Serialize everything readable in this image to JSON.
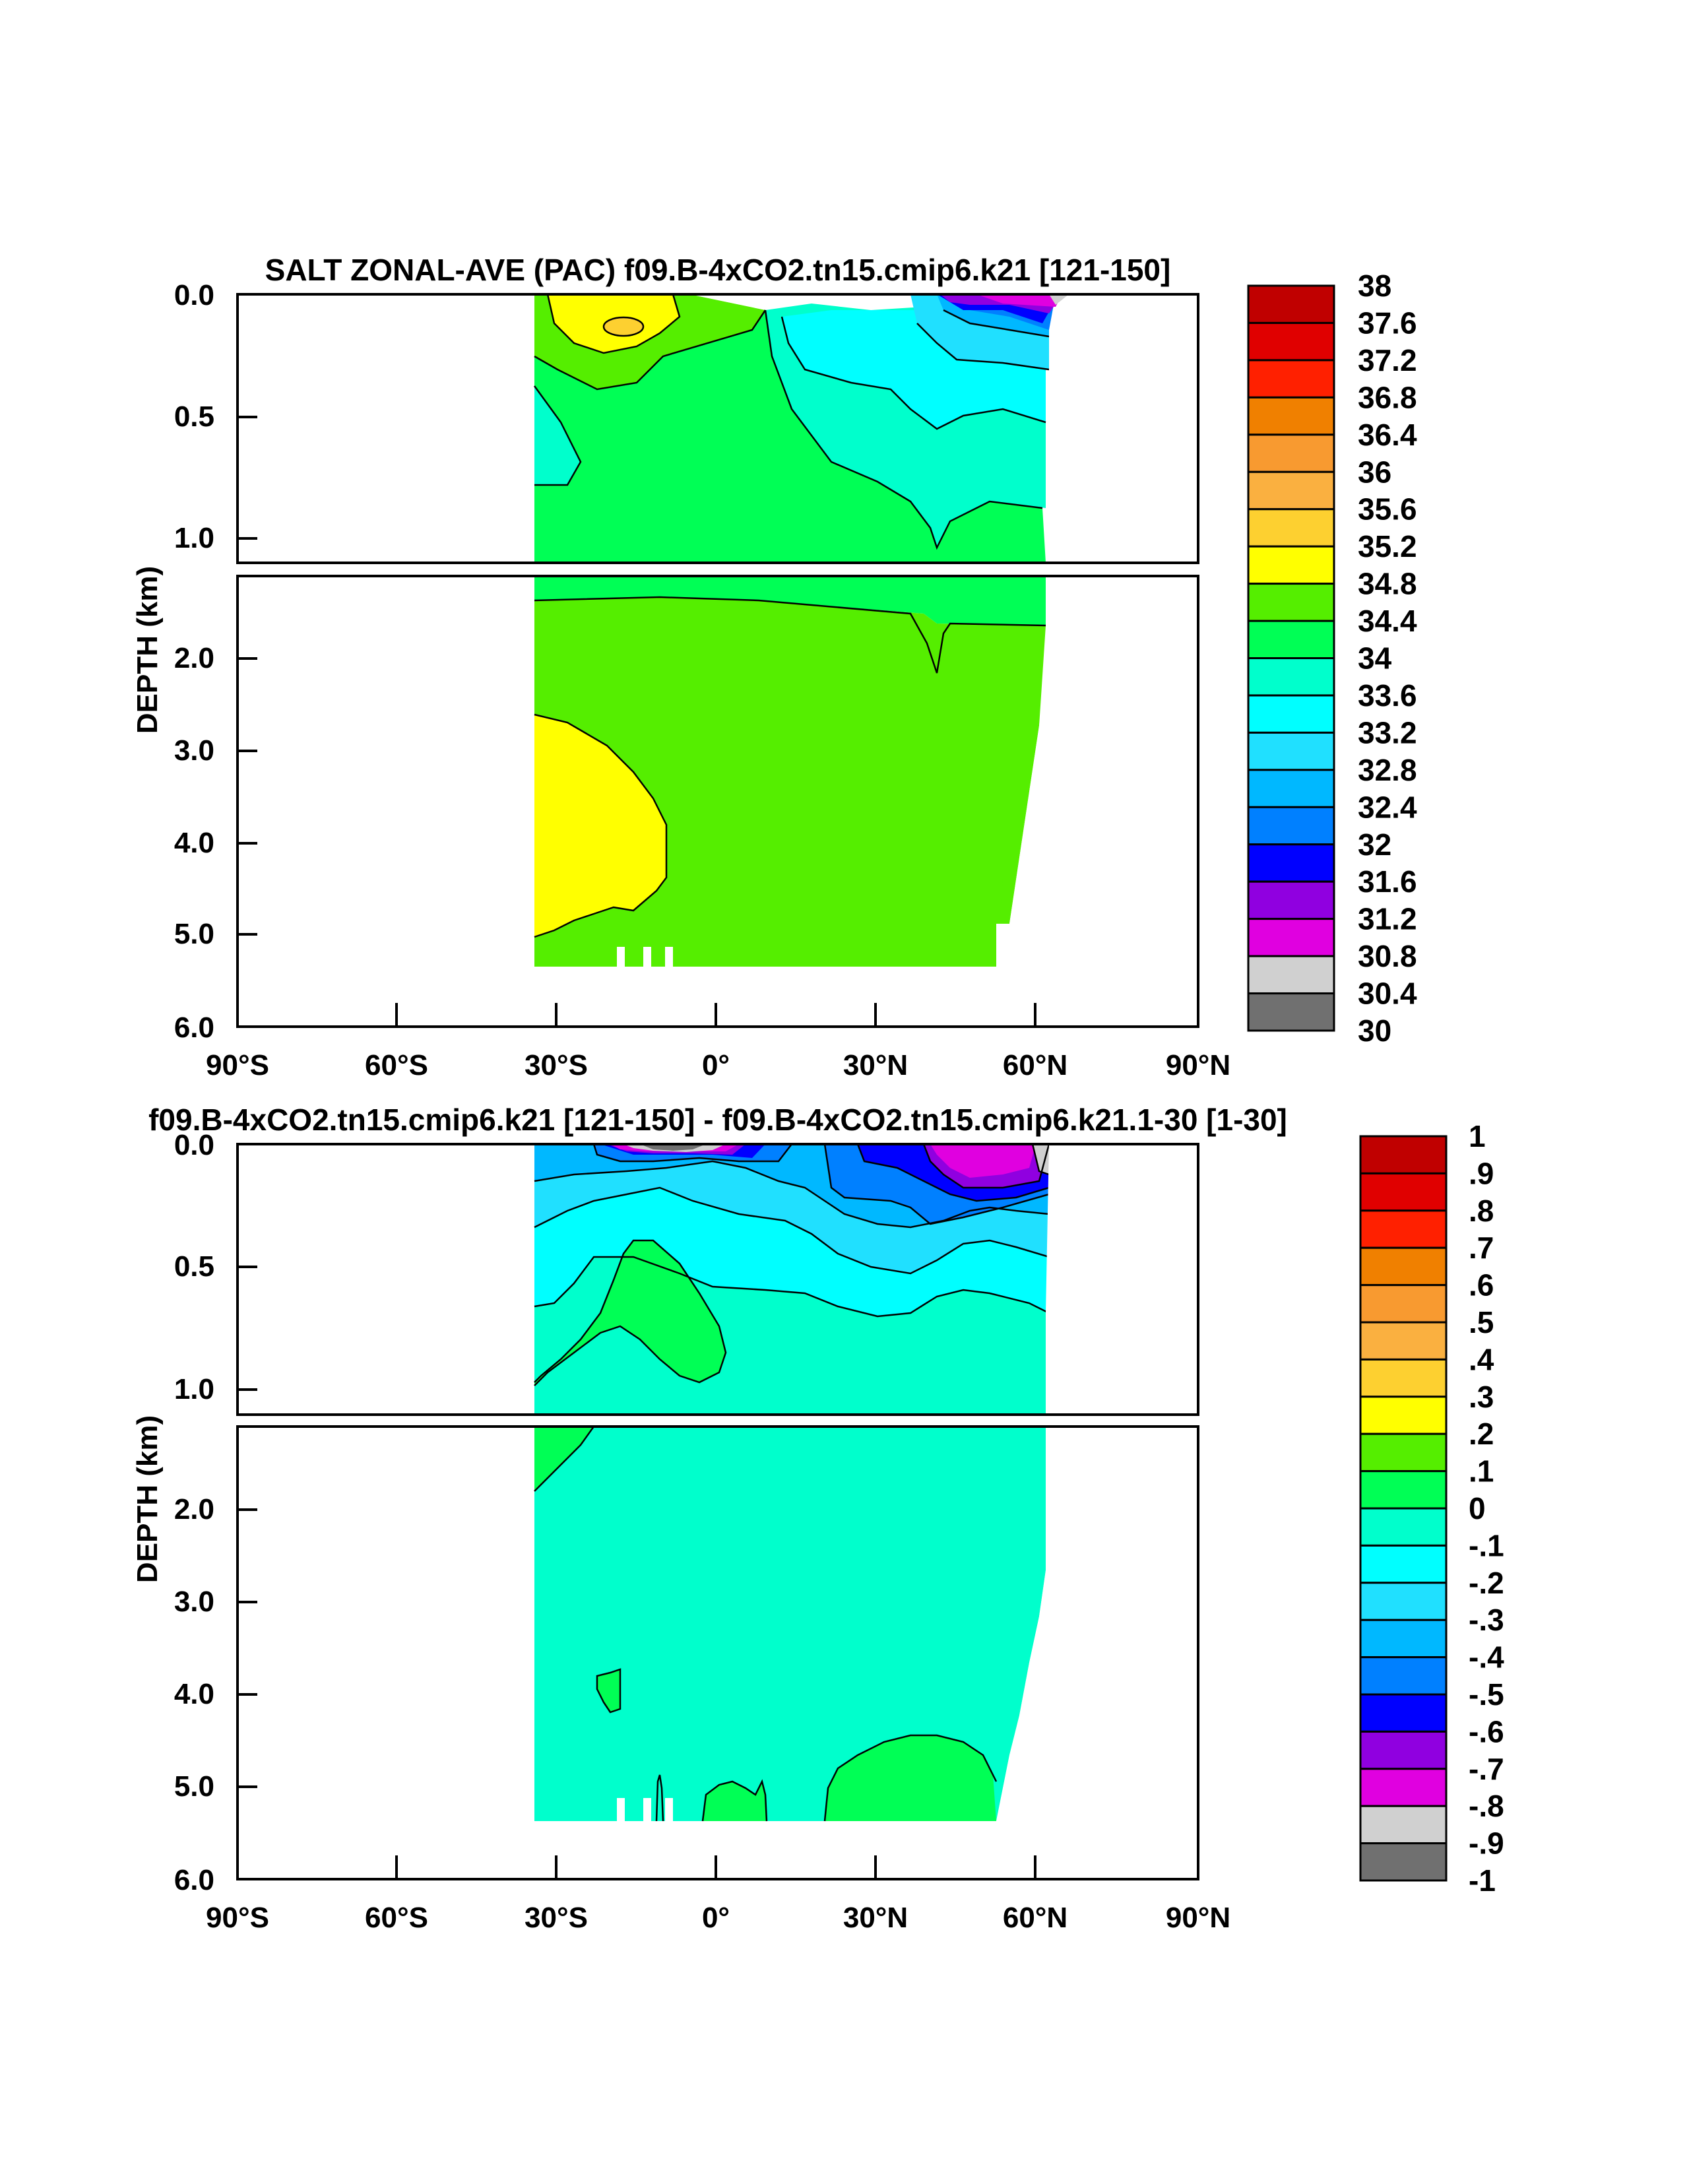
{
  "chart_data": [
    {
      "type": "heatmap",
      "subtype": "filled-contour depth-latitude section",
      "title": "SALT ZONAL-AVE (PAC) f09.B-4xCO2.tn15.cmip6.k21 [121-150]",
      "ylabel": "DEPTH (km)",
      "xlabel": "",
      "x_ticks": [
        "90°S",
        "60°S",
        "30°S",
        "0°",
        "30°N",
        "60°N",
        "90°N"
      ],
      "x_range": [
        -90,
        90
      ],
      "upper_panel_y_ticks": [
        "0.0",
        "0.5",
        "1.0"
      ],
      "upper_panel_y_range_km": [
        0,
        1.1
      ],
      "lower_panel_y_ticks": [
        "2.0",
        "3.0",
        "4.0",
        "5.0",
        "6.0"
      ],
      "lower_panel_y_range_km": [
        1.1,
        6.0
      ],
      "data_lat_range": [
        -34,
        61
      ],
      "colorbar_labels": [
        "38",
        "37.6",
        "37.2",
        "36.8",
        "36.4",
        "36",
        "35.6",
        "35.2",
        "34.8",
        "34.4",
        "34",
        "33.6",
        "33.2",
        "32.8",
        "32.4",
        "32",
        "31.6",
        "31.2",
        "30.8",
        "30.4",
        "30"
      ],
      "colorbar_colors": [
        "#c00000",
        "#e00000",
        "#ff2000",
        "#f08000",
        "#f89a30",
        "#fab040",
        "#fdd030",
        "#ffff00",
        "#55ee00",
        "#00ff55",
        "#00ffcc",
        "#00ffff",
        "#20e0ff",
        "#00b8ff",
        "#0080ff",
        "#0000ff",
        "#9000e0",
        "#e000e0",
        "#d0d0d0",
        "#707070"
      ]
    },
    {
      "type": "heatmap",
      "subtype": "filled-contour depth-latitude section (difference)",
      "title": "f09.B-4xCO2.tn15.cmip6.k21 [121-150] - f09.B-4xCO2.tn15.cmip6.k21.1-30 [1-30]",
      "ylabel": "DEPTH (km)",
      "xlabel": "",
      "x_ticks": [
        "90°S",
        "60°S",
        "30°S",
        "0°",
        "30°N",
        "60°N",
        "90°N"
      ],
      "x_range": [
        -90,
        90
      ],
      "upper_panel_y_ticks": [
        "0.0",
        "0.5",
        "1.0"
      ],
      "upper_panel_y_range_km": [
        0,
        1.1
      ],
      "lower_panel_y_ticks": [
        "2.0",
        "3.0",
        "4.0",
        "5.0",
        "6.0"
      ],
      "lower_panel_y_range_km": [
        1.1,
        6.0
      ],
      "data_lat_range": [
        -34,
        61
      ],
      "colorbar_labels": [
        "1",
        ".9",
        ".8",
        ".7",
        ".6",
        ".5",
        ".4",
        ".3",
        ".2",
        ".1",
        "0",
        "-.1",
        "-.2",
        "-.3",
        "-.4",
        "-.5",
        "-.6",
        "-.7",
        "-.8",
        "-.9",
        "-1"
      ],
      "colorbar_colors": [
        "#c00000",
        "#e00000",
        "#ff2000",
        "#f08000",
        "#f89a30",
        "#fab040",
        "#fdd030",
        "#ffff00",
        "#55ee00",
        "#00ff55",
        "#00ffcc",
        "#00ffff",
        "#20e0ff",
        "#00b8ff",
        "#0080ff",
        "#0000ff",
        "#9000e0",
        "#e000e0",
        "#d0d0d0",
        "#707070"
      ]
    }
  ]
}
